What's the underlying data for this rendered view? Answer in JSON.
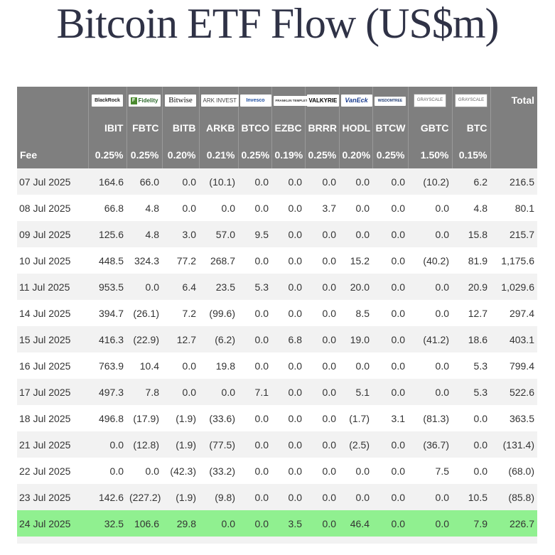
{
  "title": "Bitcoin ETF Flow (US$m)",
  "header": {
    "logos": [
      {
        "text": "BlackRock",
        "icon": "blackrock-logo"
      },
      {
        "text": "Fidelity",
        "icon": "fidelity-logo"
      },
      {
        "text": "Bitwise",
        "icon": "bitwise-logo"
      },
      {
        "text": "ARK INVEST",
        "icon": "ark-logo"
      },
      {
        "text": "Invesco",
        "icon": "invesco-logo"
      },
      {
        "text": "FRANKLIN TEMPLETON",
        "icon": "franklin-logo"
      },
      {
        "text": "VALKYRIE",
        "icon": "valkyrie-logo"
      },
      {
        "text": "VanEck",
        "icon": "vaneck-logo"
      },
      {
        "text": "WISDOMTREE",
        "icon": "wisdomtree-logo"
      },
      {
        "text": "GRAYSCALE",
        "icon": "grayscale-logo"
      },
      {
        "text": "GRAYSCALE",
        "icon": "grayscale-logo"
      }
    ],
    "total_label": "Total",
    "tickers": [
      "IBIT",
      "FBTC",
      "BITB",
      "ARKB",
      "BTCO",
      "EZBC",
      "BRRR",
      "HODL",
      "BTCW",
      "GBTC",
      "BTC"
    ],
    "fee_label": "Fee",
    "fees": [
      "0.25%",
      "0.25%",
      "0.20%",
      "0.21%",
      "0.25%",
      "0.19%",
      "0.25%",
      "0.20%",
      "0.25%",
      "1.50%",
      "0.15%"
    ]
  },
  "rows": [
    {
      "date": "07 Jul 2025",
      "values": [
        "164.6",
        "66.0",
        "0.0",
        "(10.1)",
        "0.0",
        "0.0",
        "0.0",
        "0.0",
        "0.0",
        "(10.2)",
        "6.2",
        "216.5"
      ]
    },
    {
      "date": "08 Jul 2025",
      "values": [
        "66.8",
        "4.8",
        "0.0",
        "0.0",
        "0.0",
        "0.0",
        "3.7",
        "0.0",
        "0.0",
        "0.0",
        "4.8",
        "80.1"
      ]
    },
    {
      "date": "09 Jul 2025",
      "values": [
        "125.6",
        "4.8",
        "3.0",
        "57.0",
        "9.5",
        "0.0",
        "0.0",
        "0.0",
        "0.0",
        "0.0",
        "15.8",
        "215.7"
      ]
    },
    {
      "date": "10 Jul 2025",
      "values": [
        "448.5",
        "324.3",
        "77.2",
        "268.7",
        "0.0",
        "0.0",
        "0.0",
        "15.2",
        "0.0",
        "(40.2)",
        "81.9",
        "1,175.6"
      ]
    },
    {
      "date": "11 Jul 2025",
      "values": [
        "953.5",
        "0.0",
        "6.4",
        "23.5",
        "5.3",
        "0.0",
        "0.0",
        "20.0",
        "0.0",
        "0.0",
        "20.9",
        "1,029.6"
      ]
    },
    {
      "date": "14 Jul 2025",
      "values": [
        "394.7",
        "(26.1)",
        "7.2",
        "(99.6)",
        "0.0",
        "0.0",
        "0.0",
        "8.5",
        "0.0",
        "0.0",
        "12.7",
        "297.4"
      ]
    },
    {
      "date": "15 Jul 2025",
      "values": [
        "416.3",
        "(22.9)",
        "12.7",
        "(6.2)",
        "0.0",
        "6.8",
        "0.0",
        "19.0",
        "0.0",
        "(41.2)",
        "18.6",
        "403.1"
      ]
    },
    {
      "date": "16 Jul 2025",
      "values": [
        "763.9",
        "10.4",
        "0.0",
        "19.8",
        "0.0",
        "0.0",
        "0.0",
        "0.0",
        "0.0",
        "0.0",
        "5.3",
        "799.4"
      ]
    },
    {
      "date": "17 Jul 2025",
      "values": [
        "497.3",
        "7.8",
        "0.0",
        "0.0",
        "7.1",
        "0.0",
        "0.0",
        "5.1",
        "0.0",
        "0.0",
        "5.3",
        "522.6"
      ]
    },
    {
      "date": "18 Jul 2025",
      "values": [
        "496.8",
        "(17.9)",
        "(1.9)",
        "(33.6)",
        "0.0",
        "0.0",
        "0.0",
        "(1.7)",
        "3.1",
        "(81.3)",
        "0.0",
        "363.5"
      ]
    },
    {
      "date": "21 Jul 2025",
      "values": [
        "0.0",
        "(12.8)",
        "(1.9)",
        "(77.5)",
        "0.0",
        "0.0",
        "0.0",
        "(2.5)",
        "0.0",
        "(36.7)",
        "0.0",
        "(131.4)"
      ]
    },
    {
      "date": "22 Jul 2025",
      "values": [
        "0.0",
        "0.0",
        "(42.3)",
        "(33.2)",
        "0.0",
        "0.0",
        "0.0",
        "0.0",
        "0.0",
        "7.5",
        "0.0",
        "(68.0)"
      ]
    },
    {
      "date": "23 Jul 2025",
      "values": [
        "142.6",
        "(227.2)",
        "(1.9)",
        "(9.8)",
        "0.0",
        "0.0",
        "0.0",
        "0.0",
        "0.0",
        "0.0",
        "10.5",
        "(85.8)"
      ]
    },
    {
      "date": "24 Jul 2025",
      "values": [
        "32.5",
        "106.6",
        "29.8",
        "0.0",
        "0.0",
        "3.5",
        "0.0",
        "46.4",
        "0.0",
        "0.0",
        "7.9",
        "226.7"
      ],
      "highlight": true
    }
  ],
  "colors": {
    "header_bg": "#7f7f7f",
    "negative": "#e21c1c",
    "highlight": "#90f090",
    "title": "#2f3246"
  }
}
